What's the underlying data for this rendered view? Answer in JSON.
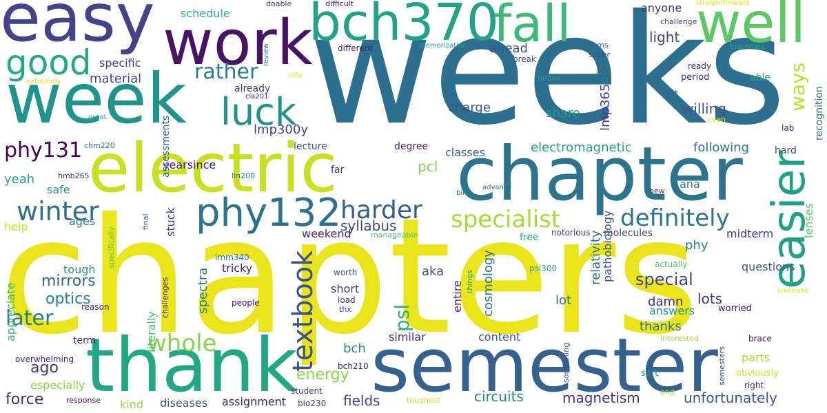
{
  "words": [
    {
      "text": "weeks",
      "color": "#2c6f8e"
    },
    {
      "text": "chapters",
      "color": "#e9e51a"
    },
    {
      "text": "semester",
      "color": "#34618d"
    },
    {
      "text": "chapter",
      "color": "#2c738e"
    },
    {
      "text": "electric",
      "color": "#c8e020"
    },
    {
      "text": "thank",
      "color": "#22a785"
    },
    {
      "text": "week",
      "color": "#1f948c"
    },
    {
      "text": "easy",
      "color": "#414487"
    },
    {
      "text": "work",
      "color": "#471365"
    },
    {
      "text": "bch370",
      "color": "#20a386"
    },
    {
      "text": "fall",
      "color": "#3aba76"
    },
    {
      "text": "well",
      "color": "#5cc863"
    },
    {
      "text": "easier",
      "color": "#1fa187"
    },
    {
      "text": "phy132",
      "color": "#2c728e"
    },
    {
      "text": "luck",
      "color": "#21918c"
    },
    {
      "text": "good",
      "color": "#25ab82"
    },
    {
      "text": "textbook",
      "color": "#3b528b"
    },
    {
      "text": "winter",
      "color": "#2d708e"
    },
    {
      "text": "harder",
      "color": "#355f8d"
    },
    {
      "text": "specialist",
      "color": "#a5db36"
    },
    {
      "text": "definitely",
      "color": "#2a788e"
    },
    {
      "text": "whole",
      "color": "#86d549"
    },
    {
      "text": "rather",
      "color": "#26828e"
    },
    {
      "text": "phy131",
      "color": "#440154"
    },
    {
      "text": "later",
      "color": "#297b8e"
    },
    {
      "text": "ways",
      "color": "#bddf26"
    },
    {
      "text": "psl",
      "color": "#2ab07f"
    },
    {
      "text": "special",
      "color": "#3e4989"
    },
    {
      "text": "magnetism",
      "color": "#472d7b"
    },
    {
      "text": "unfortunately",
      "color": "#375a8c"
    },
    {
      "text": "circuits",
      "color": "#23888e"
    },
    {
      "text": "fields",
      "color": "#414487"
    },
    {
      "text": "energy",
      "color": "#8bd646"
    },
    {
      "text": "optics",
      "color": "#25838e"
    },
    {
      "text": "mirrors",
      "color": "#31688e"
    },
    {
      "text": "force",
      "color": "#472d7b"
    },
    {
      "text": "ago",
      "color": "#453882"
    },
    {
      "text": "syllabus",
      "color": "#3f4889"
    },
    {
      "text": "electromagnetic",
      "color": "#20a386"
    },
    {
      "text": "charge",
      "color": "#3b528b"
    },
    {
      "text": "lmp300y",
      "color": "#433e85"
    },
    {
      "text": "lmp365",
      "color": "#443b84"
    },
    {
      "text": "lots",
      "color": "#46327e"
    },
    {
      "text": "relativity",
      "color": "#2e6e8e"
    },
    {
      "text": "cosmology",
      "color": "#2d708e"
    },
    {
      "text": "spectra",
      "color": "#287c8e"
    },
    {
      "text": "pathobiology",
      "color": "#3d4e8a"
    },
    {
      "text": "lenses",
      "color": "#5ec962"
    },
    {
      "text": "recognition",
      "color": "#2d718e"
    },
    {
      "text": "willing",
      "color": "#3a548c"
    },
    {
      "text": "following",
      "color": "#2c728e"
    },
    {
      "text": "light",
      "color": "#3f4889"
    },
    {
      "text": "ahead",
      "color": "#38588c"
    },
    {
      "text": "anyone",
      "color": "#46327e"
    },
    {
      "text": "schedule",
      "color": "#2ab07f"
    },
    {
      "text": "material",
      "color": "#3e4989"
    },
    {
      "text": "specific",
      "color": "#433d84"
    },
    {
      "text": "already",
      "color": "#453781"
    },
    {
      "text": "yearsince",
      "color": "#481f70"
    },
    {
      "text": "lecture",
      "color": "#3e4a89"
    },
    {
      "text": "degree",
      "color": "#482173"
    },
    {
      "text": "classes",
      "color": "#365d8d"
    },
    {
      "text": "pcl",
      "color": "#7ad151"
    },
    {
      "text": "share",
      "color": "#1f9a8a"
    },
    {
      "text": "ana",
      "color": "#2a788e"
    },
    {
      "text": "lab",
      "color": "#482576"
    },
    {
      "text": "hard",
      "color": "#3e4989"
    },
    {
      "text": "yeah",
      "color": "#22a884"
    },
    {
      "text": "safe",
      "color": "#1f9a8a"
    },
    {
      "text": "ages",
      "color": "#29798e"
    },
    {
      "text": "help",
      "color": "#d2e21b"
    },
    {
      "text": "stuck",
      "color": "#404588"
    },
    {
      "text": "weekend",
      "color": "#482878"
    },
    {
      "text": "far",
      "color": "#46307e"
    },
    {
      "text": "molecules",
      "color": "#433d84"
    },
    {
      "text": "midterm",
      "color": "#46337f"
    },
    {
      "text": "phy",
      "color": "#27808e"
    },
    {
      "text": "questions",
      "color": "#3b528b"
    },
    {
      "text": "tough",
      "color": "#20928c"
    },
    {
      "text": "tricky",
      "color": "#482576"
    },
    {
      "text": "aka",
      "color": "#3b528b"
    },
    {
      "text": "lot",
      "color": "#2c728e"
    },
    {
      "text": "damn",
      "color": "#472c7a"
    },
    {
      "text": "answers",
      "color": "#1f968b"
    },
    {
      "text": "thanks",
      "color": "#2b758e"
    },
    {
      "text": "appreciate",
      "color": "#38b977"
    },
    {
      "text": "literally",
      "color": "#46c06f"
    },
    {
      "text": "short",
      "color": "#433d84"
    },
    {
      "text": "entire",
      "color": "#482475"
    },
    {
      "text": "bch",
      "color": "#23898e"
    },
    {
      "text": "similar",
      "color": "#472d7b"
    },
    {
      "text": "content",
      "color": "#355f8d"
    },
    {
      "text": "parts",
      "color": "#b5de2b"
    },
    {
      "text": "term",
      "color": "#481a6c"
    },
    {
      "text": "especially",
      "color": "#8bd646"
    },
    {
      "text": "kind",
      "color": "#93d741"
    },
    {
      "text": "diseases",
      "color": "#3a548c"
    },
    {
      "text": "assignment",
      "color": "#482173"
    },
    {
      "text": "free",
      "color": "#22a884"
    },
    {
      "text": "people",
      "color": "#471063"
    },
    {
      "text": "worth",
      "color": "#3e4989"
    },
    {
      "text": "worried",
      "color": "#471365"
    },
    {
      "text": "right",
      "color": "#462f7c"
    },
    {
      "text": "obviously",
      "color": "#d5e21a"
    },
    {
      "text": "sort",
      "color": "#1f988b"
    },
    {
      "text": "brace",
      "color": "#471063"
    },
    {
      "text": "interested",
      "color": "#9dd93b"
    },
    {
      "text": "end",
      "color": "#a0da39"
    },
    {
      "text": "toughest",
      "color": "#cae11f"
    },
    {
      "text": "student",
      "color": "#46337f"
    },
    {
      "text": "bio230",
      "color": "#453882"
    },
    {
      "text": "bch210",
      "color": "#481b6d"
    },
    {
      "text": "response",
      "color": "#46085c"
    },
    {
      "text": "overwhelming",
      "color": "#481f70"
    },
    {
      "text": "reason",
      "color": "#482071"
    },
    {
      "text": "challenges",
      "color": "#481b6d"
    },
    {
      "text": "specifically",
      "color": "#5ac864"
    },
    {
      "text": "imm340",
      "color": "#2f6c8e"
    },
    {
      "text": "final",
      "color": "#2d708e"
    },
    {
      "text": "manageable",
      "color": "#4fc46a"
    },
    {
      "text": "notorious",
      "color": "#423f85"
    },
    {
      "text": "psl300",
      "color": "#2ab07f"
    },
    {
      "text": "actually",
      "color": "#52c569"
    },
    {
      "text": "something",
      "color": "#38588c"
    },
    {
      "text": "semesters",
      "color": "#3d4e8a"
    },
    {
      "text": "someone",
      "color": "#e0e318"
    },
    {
      "text": "things",
      "color": "#1f9e89"
    },
    {
      "text": "load",
      "color": "#46307e"
    },
    {
      "text": "thx",
      "color": "#453781"
    },
    {
      "text": "lin200",
      "color": "#26828e"
    },
    {
      "text": "hmb265",
      "color": "#46327e"
    },
    {
      "text": "chm220",
      "color": "#297b8e"
    },
    {
      "text": "advance",
      "color": "#2a788e"
    },
    {
      "text": "bird",
      "color": "#2a788e"
    },
    {
      "text": "new",
      "color": "#46307e"
    },
    {
      "text": "great",
      "color": "#2ab07f"
    },
    {
      "text": "extremely",
      "color": "#d5e21a"
    },
    {
      "text": "info",
      "color": "#ece51b"
    },
    {
      "text": "cla201",
      "color": "#482878"
    },
    {
      "text": "review",
      "color": "#2c728e"
    },
    {
      "text": "doable",
      "color": "#46327e"
    },
    {
      "text": "difficult",
      "color": "#471063"
    },
    {
      "text": "memorization",
      "color": "#20a386"
    },
    {
      "text": "different",
      "color": "#482374"
    },
    {
      "text": "break",
      "color": "#3b528b"
    },
    {
      "text": "programs",
      "color": "#2e6e8e"
    },
    {
      "text": "super",
      "color": "#3d4e8a"
    },
    {
      "text": "heavy",
      "color": "#20a386"
    },
    {
      "text": "period",
      "color": "#46307e"
    },
    {
      "text": "ready",
      "color": "#472d7b"
    },
    {
      "text": "able",
      "color": "#2ab07f"
    },
    {
      "text": "bit",
      "color": "#31688e"
    },
    {
      "text": "even",
      "color": "#e7e419"
    },
    {
      "text": "challenge",
      "color": "#433e85"
    },
    {
      "text": "straightforward",
      "color": "#e2e418"
    },
    {
      "text": "materials",
      "color": "#1fa287"
    },
    {
      "text": "assessments",
      "color": "#34618d"
    }
  ]
}
